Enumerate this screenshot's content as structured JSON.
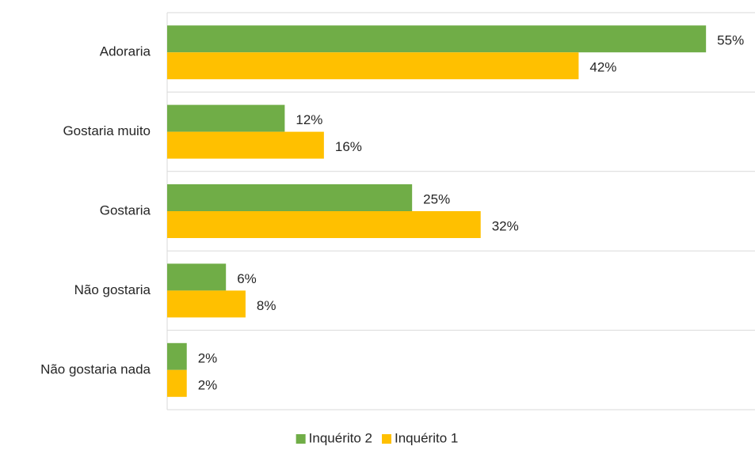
{
  "chart_data": {
    "type": "hbar",
    "categories": [
      "Adoraria",
      "Gostaria muito",
      "Gostaria",
      "Não gostaria",
      "Não gostaria nada"
    ],
    "series": [
      {
        "name": "Inquérito 2",
        "color": "#70ad47",
        "values": [
          55,
          12,
          25,
          6,
          2
        ],
        "value_labels": [
          "55%",
          "12%",
          "25%",
          "6%",
          "2%"
        ]
      },
      {
        "name": "Inquérito 1",
        "color": "#ffc000",
        "values": [
          42,
          16,
          32,
          8,
          2
        ],
        "value_labels": [
          "42%",
          "16%",
          "32%",
          "8%",
          "2%"
        ]
      }
    ],
    "xlim": [
      0,
      60
    ],
    "legend": "bottom"
  }
}
